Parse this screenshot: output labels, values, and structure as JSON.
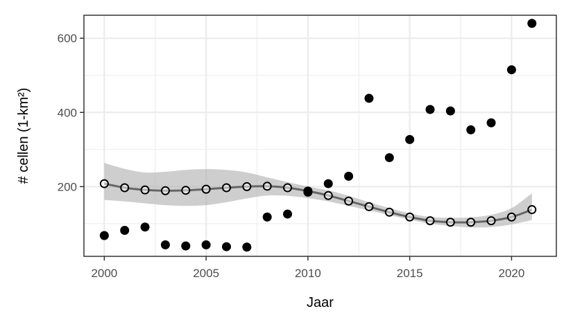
{
  "chart_data": {
    "type": "scatter",
    "title": "",
    "xlabel": "Jaar",
    "ylabel": "# cellen (1-km²)",
    "xlim": [
      1999,
      2022.2
    ],
    "ylim": [
      12,
      662
    ],
    "x_ticks": [
      2000,
      2005,
      2010,
      2015,
      2020
    ],
    "x_tick_labels": [
      "2000",
      "2005",
      "2010",
      "2015",
      "2020"
    ],
    "y_ticks": [
      200,
      400,
      600
    ],
    "y_tick_labels": [
      "200",
      "400",
      "600"
    ],
    "grid": true,
    "legend": "none",
    "colors": {
      "observed": "#000000",
      "fit_line": "#666666",
      "ribbon": "#b3b3b3",
      "grid": "#ebebeb",
      "panel_border": "#333333"
    },
    "series": [
      {
        "type": "scatter",
        "x": [
          2000,
          2001,
          2002,
          2003,
          2004,
          2005,
          2006,
          2007,
          2008,
          2009,
          2010,
          2011,
          2012,
          2013,
          2014,
          2015,
          2016,
          2017,
          2018,
          2019,
          2020,
          2021
        ],
        "values": [
          68,
          82,
          91,
          43,
          40,
          43,
          38,
          37,
          118,
          126,
          185,
          208,
          228,
          438,
          278,
          327,
          408,
          404,
          353,
          372,
          515,
          640
        ]
      },
      {
        "type": "line",
        "x": [
          2000,
          2001,
          2002,
          2003,
          2004,
          2005,
          2006,
          2007,
          2008,
          2009,
          2010,
          2011,
          2012,
          2013,
          2014,
          2015,
          2016,
          2017,
          2018,
          2019,
          2020,
          2021
        ],
        "values": [
          208,
          197,
          191,
          189,
          190,
          193,
          197,
          200,
          201,
          197,
          188,
          176,
          161,
          146,
          131,
          118,
          108,
          104,
          104,
          108,
          118,
          138
        ],
        "lower": [
          164,
          160,
          155,
          150,
          148,
          150,
          158,
          168,
          176,
          175,
          169,
          160,
          148,
          136,
          123,
          111,
          100,
          94,
          90,
          91,
          98,
          110
        ],
        "upper": [
          264,
          248,
          238,
          240,
          245,
          247,
          245,
          238,
          225,
          212,
          200,
          190,
          175,
          158,
          142,
          128,
          118,
          116,
          117,
          124,
          142,
          182
        ]
      }
    ]
  }
}
